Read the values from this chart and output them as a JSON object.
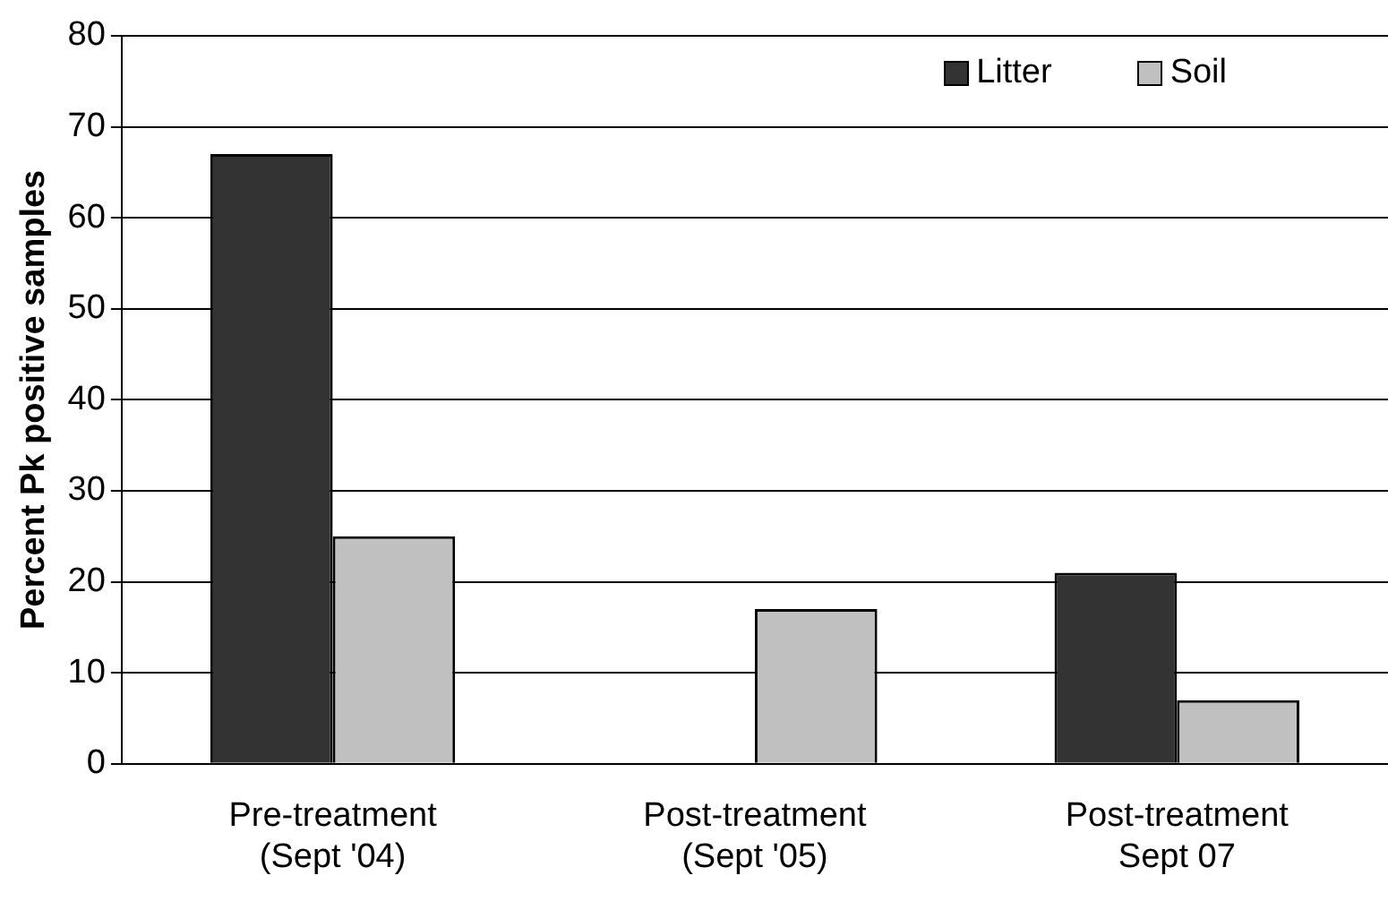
{
  "chart_data": {
    "type": "bar",
    "ylabel": "Percent Pk positive samples",
    "categories": [
      "Pre-treatment\n(Sept '04)",
      "Post-treatment\n(Sept '05)",
      "Post-treatment\nSept 07"
    ],
    "series": [
      {
        "name": "Litter",
        "color": "#323332",
        "values": [
          67,
          0,
          21
        ]
      },
      {
        "name": "Soil",
        "color": "#c0c0c0",
        "values": [
          25,
          17,
          7
        ]
      }
    ],
    "ylim": [
      0,
      80
    ],
    "yticks": [
      0,
      10,
      20,
      30,
      40,
      50,
      60,
      70,
      80
    ],
    "grid": "y",
    "legend": "top right"
  }
}
